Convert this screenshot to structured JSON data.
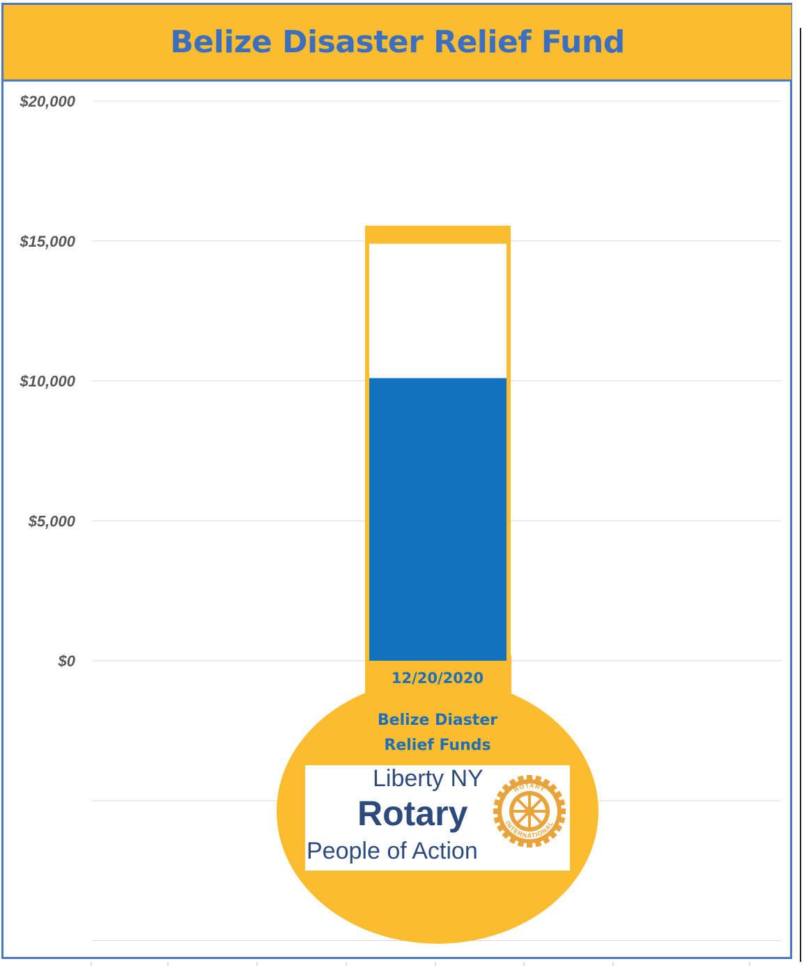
{
  "title": "Belize Disaster Relief Fund",
  "chart_data": {
    "type": "bar",
    "variant": "thermometer",
    "title": "Belize Disaster Relief Fund",
    "y_ticks": [
      "$20,000",
      "$15,000",
      "$10,000",
      "$5,000",
      "$0"
    ],
    "ylim": [
      0,
      20000
    ],
    "categories": [
      "12/20/2020"
    ],
    "raised": 10100,
    "goal": 15000,
    "grid": true,
    "bulb_label": [
      "Belize Diaster",
      "Relief Funds"
    ],
    "colors": {
      "fill": "#1372bd",
      "tube": "#fbbd2f",
      "frame": "#4a78c2"
    }
  },
  "logo": {
    "line1": "Liberty NY",
    "line2": "Rotary",
    "line3": "People of Action",
    "wheel_text_top": "ROTARY",
    "wheel_text_bottom": "INTERNATIONAL",
    "icon": "rotary-wheel-icon"
  }
}
